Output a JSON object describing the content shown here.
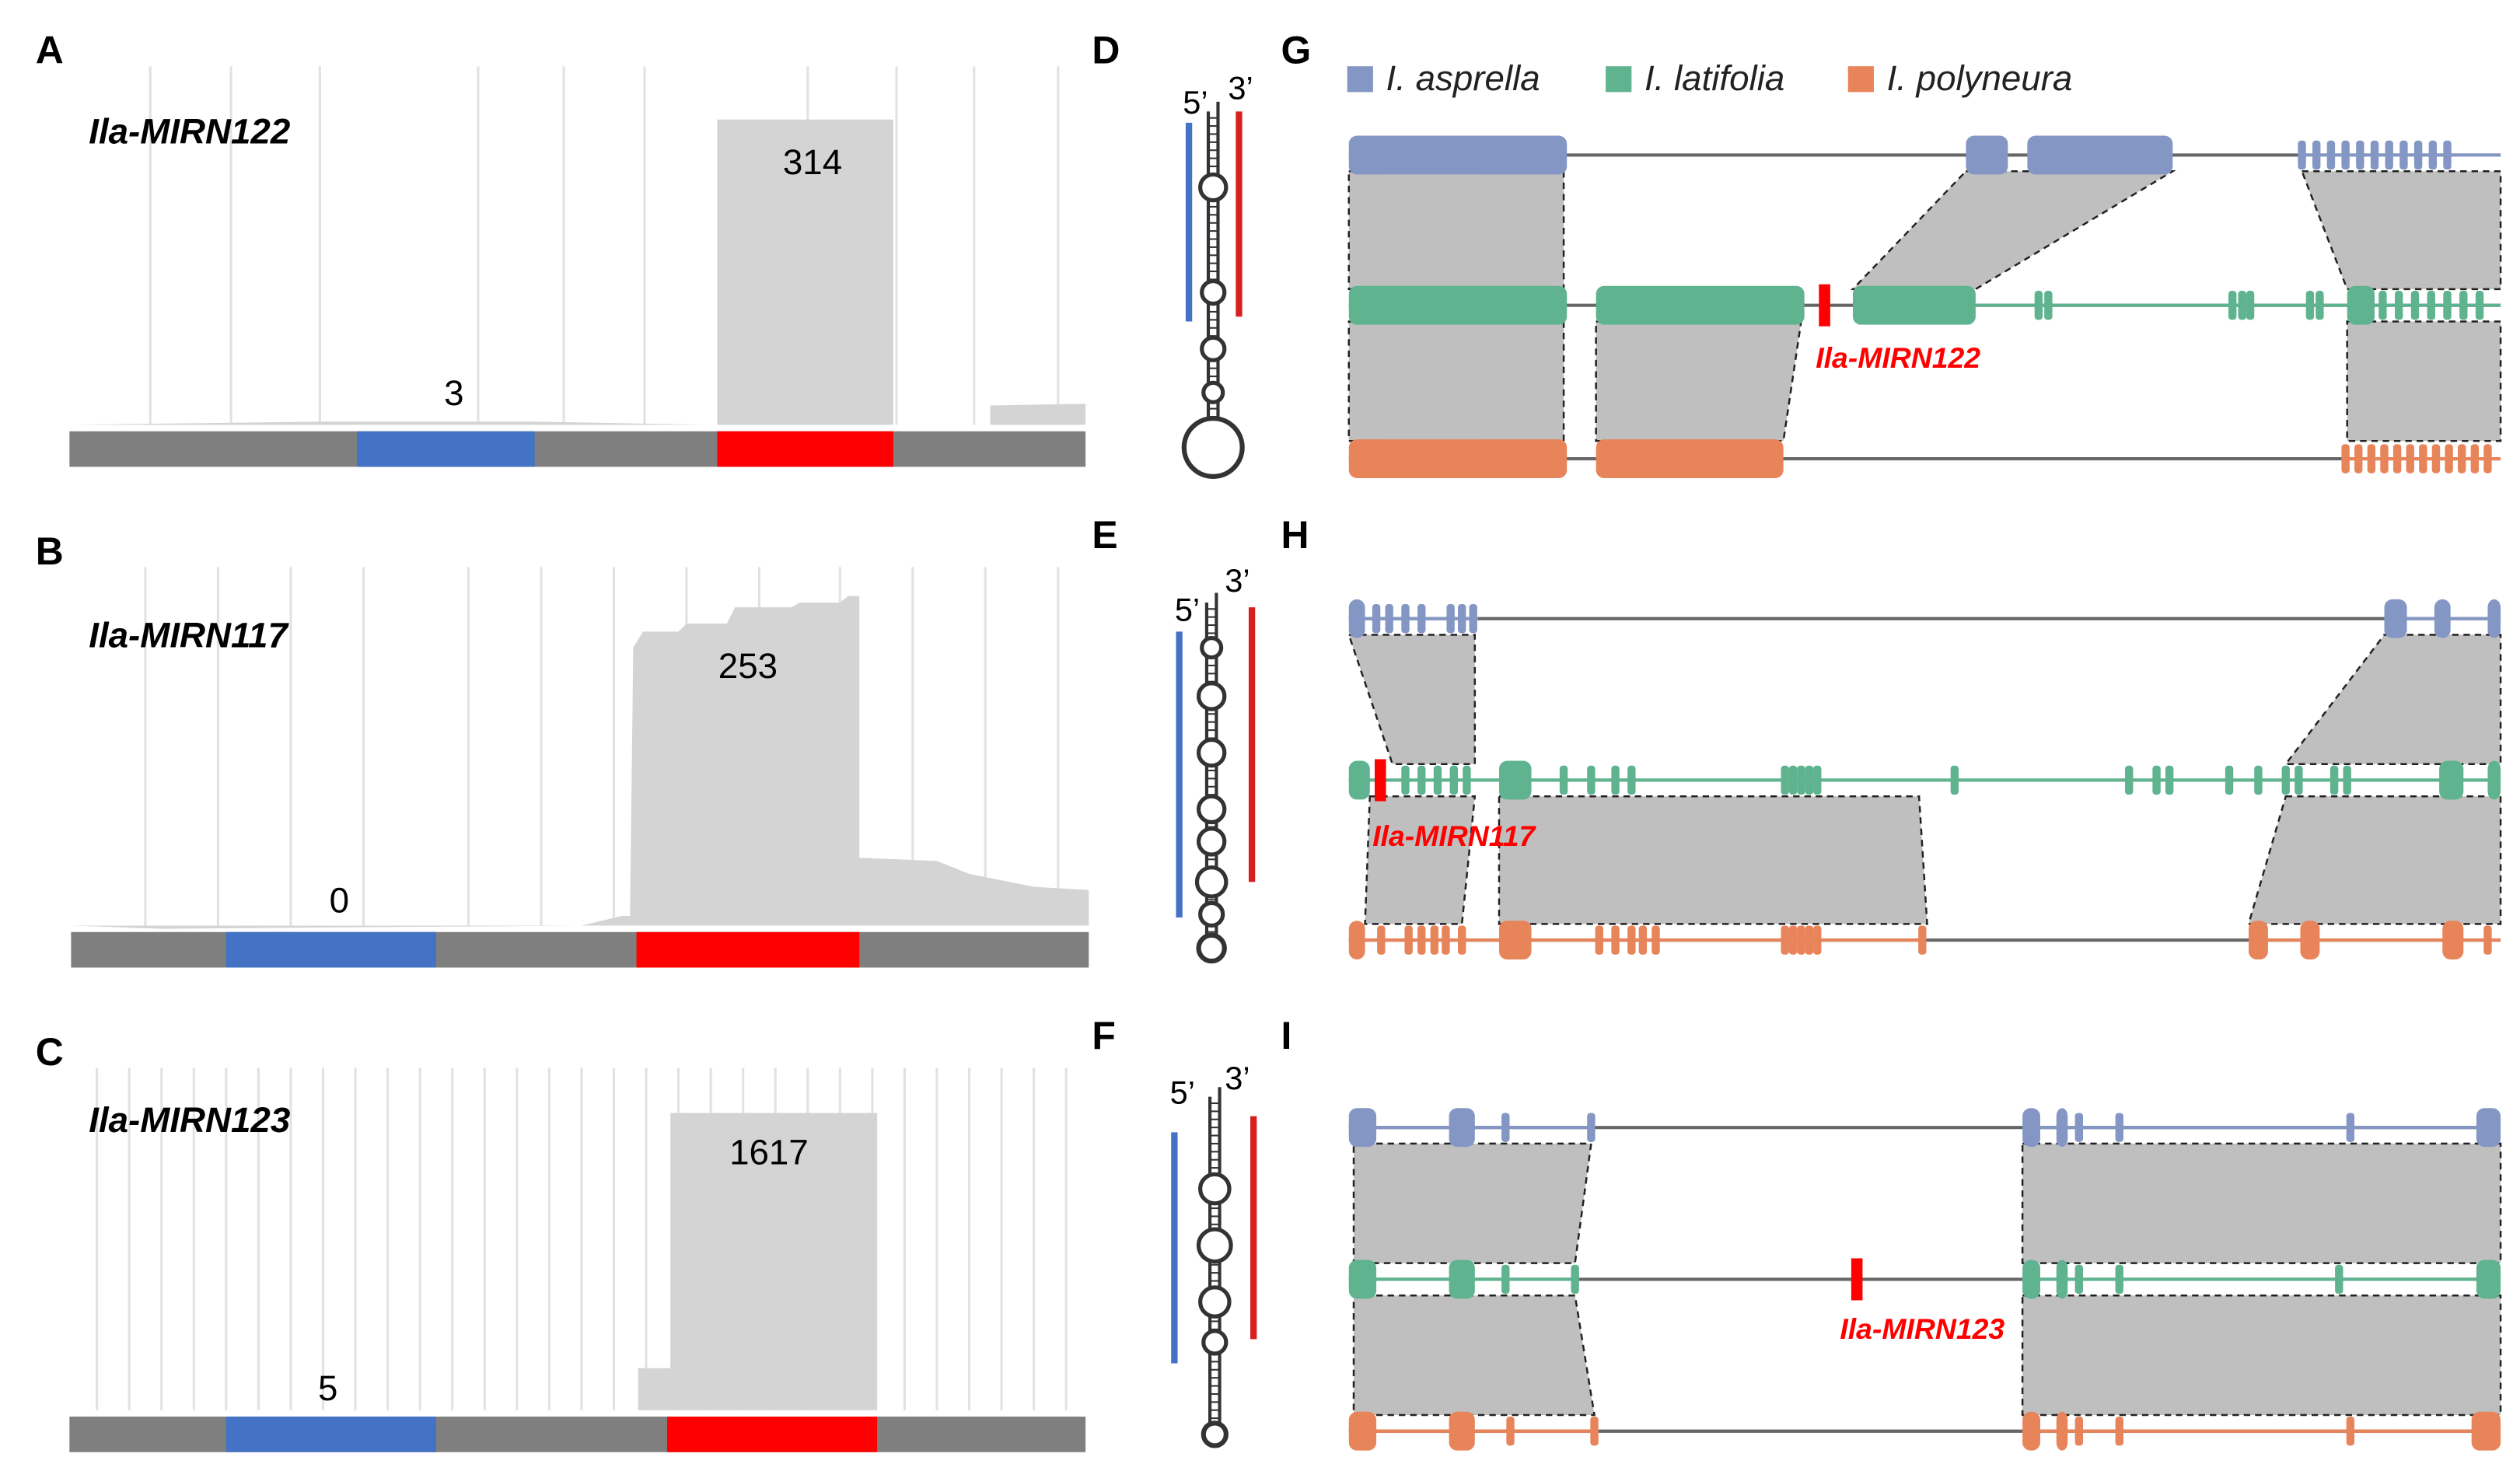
{
  "coverage_panels": [
    {
      "letter": "A",
      "gene": "Ila-MIRN122",
      "star_count": 3,
      "mature_count": 314
    },
    {
      "letter": "B",
      "gene": "Ila-MIRN117",
      "star_count": 0,
      "mature_count": 253
    },
    {
      "letter": "C",
      "gene": "Ila-MIRN123",
      "star_count": 5,
      "mature_count": 1617
    }
  ],
  "hairpin_panels": [
    {
      "letter": "D",
      "five_prime": "5’",
      "three_prime": "3’"
    },
    {
      "letter": "E",
      "five_prime": "5’",
      "three_prime": "3’"
    },
    {
      "letter": "F",
      "five_prime": "5’",
      "three_prime": "3’"
    }
  ],
  "synteny": {
    "legend": [
      "I. asprella",
      "I. latifolia",
      "I. polyneura"
    ],
    "panels": [
      {
        "letter": "G",
        "mirna": "Ila-MIRN122"
      },
      {
        "letter": "H",
        "mirna": "Ila-MIRN117"
      },
      {
        "letter": "I",
        "mirna": "Ila-MIRN123"
      }
    ]
  }
}
